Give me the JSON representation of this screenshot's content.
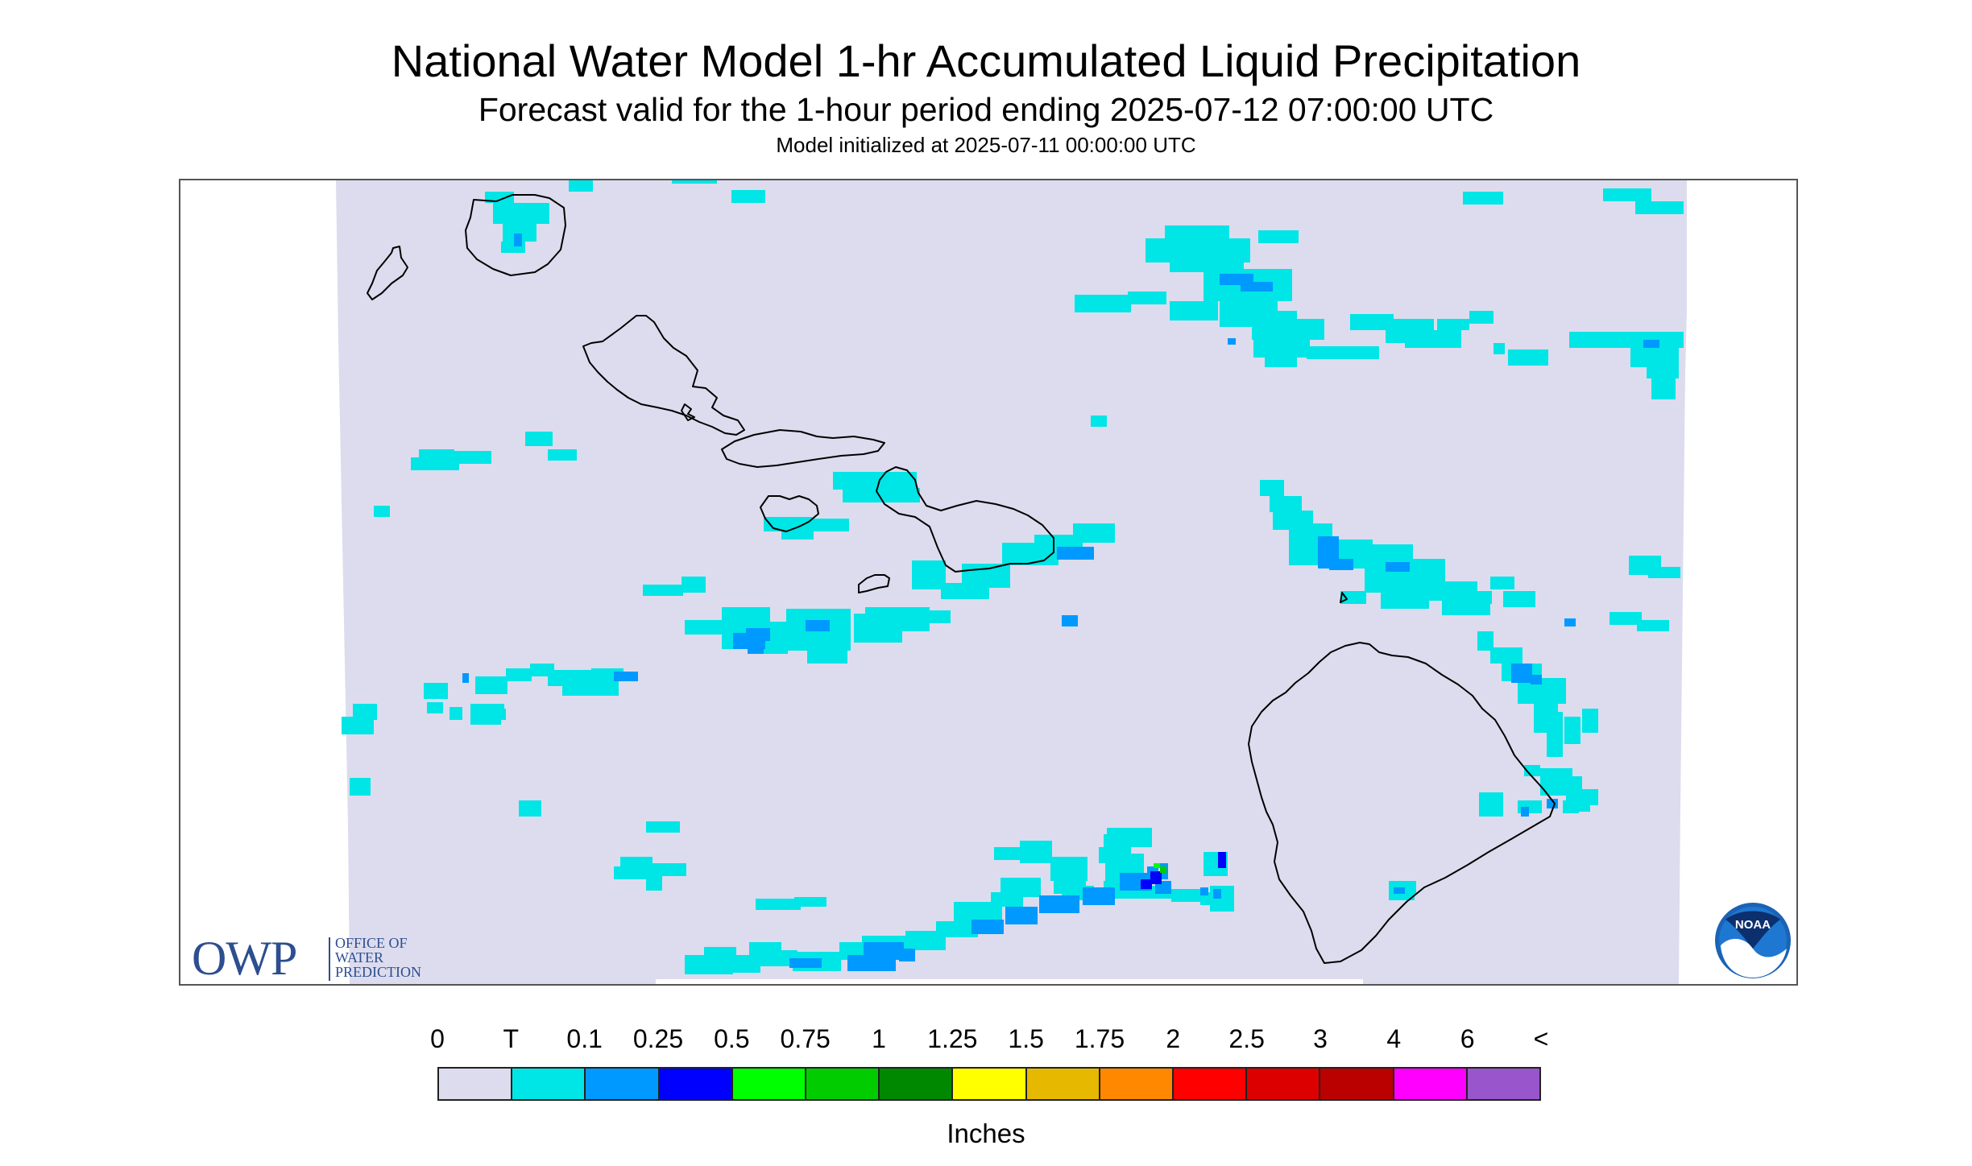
{
  "header": {
    "title": "National Water Model 1-hr Accumulated Liquid Precipitation",
    "subtitle": "Forecast valid for the 1-hour period ending 2025-07-12 07:00:00 UTC",
    "init": "Model initialized at 2025-07-11 00:00:00 UTC"
  },
  "map": {
    "region": "Hawaiian Islands",
    "background_color": "#dcdcee",
    "coastline_color": "#000000"
  },
  "logos": {
    "owp": {
      "letters": "OWP",
      "words": [
        "OFFICE OF",
        "WATER",
        "PREDICTION"
      ]
    },
    "noaa": {
      "text": "NOAA"
    }
  },
  "legend": {
    "labels": [
      "0",
      "T",
      "0.1",
      "0.25",
      "0.5",
      "0.75",
      "1",
      "1.25",
      "1.5",
      "1.75",
      "2",
      "2.5",
      "3",
      "4",
      "6",
      "<"
    ],
    "colors": [
      "#dcdcee",
      "#00e5e5",
      "#0099ff",
      "#0000ff",
      "#00ff00",
      "#00cc00",
      "#008800",
      "#ffff00",
      "#e6b800",
      "#ff8800",
      "#ff0000",
      "#dd0000",
      "#bb0000",
      "#ff00ff",
      "#9955cc"
    ],
    "units": "Inches"
  }
}
